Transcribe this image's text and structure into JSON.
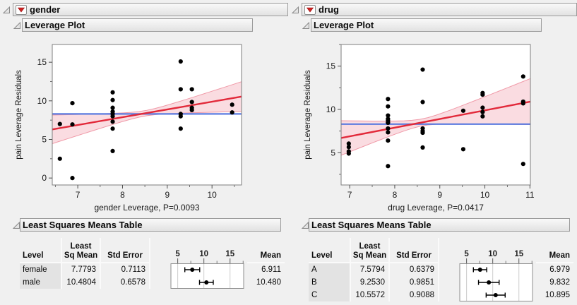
{
  "colors": {
    "fit_line": "#e2293a",
    "band_fill": "#fadce1",
    "band_edge": "#f09aa8",
    "mean_line": "#5b7be0",
    "point": "#000000",
    "red_triangle": "#cc2222"
  },
  "icons": {
    "disclosure": "open-disclosure-triangle",
    "red_triangle": "red-triangle-menu"
  },
  "panels": [
    {
      "title": "gender",
      "plot_section_title": "Leverage Plot",
      "table_section_title": "Least Squares Means Table",
      "table": {
        "header": {
          "level": "Level",
          "ls_line1": "Least",
          "ls_line2": "Sq Mean",
          "std_error": "Std Error",
          "mean": "Mean"
        },
        "axis": {
          "ticks": [
            5,
            10,
            15
          ],
          "minor": [
            7.5,
            12.5,
            17.5
          ],
          "range": [
            3.7,
            17.6
          ]
        },
        "rows": [
          {
            "level": "female",
            "ls_mean": "7.7793",
            "std_error": "0.7113",
            "mean": "6.911"
          },
          {
            "level": "male",
            "ls_mean": "10.4804",
            "std_error": "0.6578",
            "mean": "10.480"
          }
        ]
      }
    },
    {
      "title": "drug",
      "plot_section_title": "Leverage Plot",
      "table_section_title": "Least Squares Means Table",
      "table": {
        "header": {
          "level": "Level",
          "ls_line1": "Least",
          "ls_line2": "Sq Mean",
          "std_error": "Std Error",
          "mean": "Mean"
        },
        "axis": {
          "ticks": [
            5,
            10,
            15
          ],
          "minor": [
            7.5,
            12.5,
            17.5
          ],
          "range": [
            3.7,
            17.6
          ]
        },
        "rows": [
          {
            "level": "A",
            "ls_mean": "7.5794",
            "std_error": "0.6379",
            "mean": "6.979"
          },
          {
            "level": "B",
            "ls_mean": "9.2530",
            "std_error": "0.9851",
            "mean": "9.832"
          },
          {
            "level": "C",
            "ls_mean": "10.5572",
            "std_error": "0.9088",
            "mean": "10.895"
          }
        ]
      }
    }
  ],
  "chart_data": [
    {
      "type": "scatter",
      "panel": "gender",
      "xlabel": "gender Leverage, P=0.0093",
      "ylabel": "pain Leverage Residuals",
      "x_range": [
        6.43,
        10.66
      ],
      "y_range": [
        -0.9,
        17.3
      ],
      "x_ticks": [
        7,
        8,
        9,
        10
      ],
      "x_minor": [
        6.5,
        7.5,
        8.5,
        9.5,
        10.5
      ],
      "y_ticks": [
        0,
        5,
        10,
        15
      ],
      "y_minor": [
        2.5,
        7.5,
        12.5
      ],
      "grid": false,
      "mean_line_y": 8.3,
      "fit_line": {
        "x1": 6.43,
        "y1": 6.3,
        "x2": 10.66,
        "y2": 10.55
      },
      "conf_band": {
        "x_mid": 8.5,
        "halfwidth_mid": 0.35,
        "spread": 0.77
      },
      "points": [
        [
          6.6,
          7.0
        ],
        [
          6.6,
          2.5
        ],
        [
          6.88,
          9.7
        ],
        [
          6.88,
          6.95
        ],
        [
          6.88,
          0.0
        ],
        [
          7.78,
          11.1
        ],
        [
          7.78,
          10.1
        ],
        [
          7.78,
          9.1
        ],
        [
          7.78,
          8.6
        ],
        [
          7.78,
          8.3
        ],
        [
          7.78,
          8.0
        ],
        [
          7.78,
          7.3
        ],
        [
          7.78,
          6.4
        ],
        [
          7.78,
          3.5
        ],
        [
          9.3,
          15.1
        ],
        [
          9.3,
          11.5
        ],
        [
          9.3,
          8.3
        ],
        [
          9.3,
          8.0
        ],
        [
          9.3,
          6.4
        ],
        [
          9.55,
          11.5
        ],
        [
          9.55,
          9.85
        ],
        [
          9.55,
          9.1
        ],
        [
          9.55,
          8.8
        ],
        [
          10.45,
          9.5
        ],
        [
          10.45,
          8.5
        ]
      ]
    },
    {
      "type": "scatter",
      "panel": "drug",
      "xlabel": "drug Leverage, P=0.0417",
      "ylabel": "pain Leverage Residuals",
      "x_range": [
        6.81,
        11.01
      ],
      "y_range": [
        1.27,
        17.5
      ],
      "x_ticks": [
        7,
        8,
        9,
        10,
        11
      ],
      "x_minor": [
        7.5,
        8.5,
        9.5,
        10.5
      ],
      "y_ticks": [
        5,
        10,
        15
      ],
      "y_minor": [
        2.5,
        7.5,
        12.5,
        17.5
      ],
      "grid": false,
      "mean_line_y": 8.3,
      "fit_line": {
        "x1": 6.81,
        "y1": 6.7,
        "x2": 11.01,
        "y2": 10.9
      },
      "conf_band": {
        "x_mid": 8.6,
        "halfwidth_mid": 0.4,
        "spread": 1.19
      },
      "points": [
        [
          6.98,
          6.05
        ],
        [
          6.98,
          5.65
        ],
        [
          6.98,
          5.15
        ],
        [
          6.98,
          4.9
        ],
        [
          7.85,
          11.2
        ],
        [
          7.85,
          10.35
        ],
        [
          7.85,
          9.3
        ],
        [
          7.85,
          8.9
        ],
        [
          7.85,
          8.7
        ],
        [
          7.85,
          8.5
        ],
        [
          7.85,
          8.45
        ],
        [
          7.85,
          7.8
        ],
        [
          7.85,
          7.35
        ],
        [
          7.85,
          6.4
        ],
        [
          7.85,
          3.45
        ],
        [
          8.62,
          14.6
        ],
        [
          8.62,
          10.85
        ],
        [
          8.62,
          7.8
        ],
        [
          8.62,
          7.5
        ],
        [
          8.62,
          7.3
        ],
        [
          8.62,
          5.6
        ],
        [
          9.52,
          9.85
        ],
        [
          9.52,
          5.4
        ],
        [
          9.95,
          11.9
        ],
        [
          9.95,
          11.7
        ],
        [
          9.95,
          10.2
        ],
        [
          9.95,
          9.7
        ],
        [
          9.95,
          9.2
        ],
        [
          10.85,
          13.8
        ],
        [
          10.85,
          10.9
        ],
        [
          10.85,
          10.7
        ],
        [
          10.85,
          3.7
        ]
      ]
    }
  ]
}
